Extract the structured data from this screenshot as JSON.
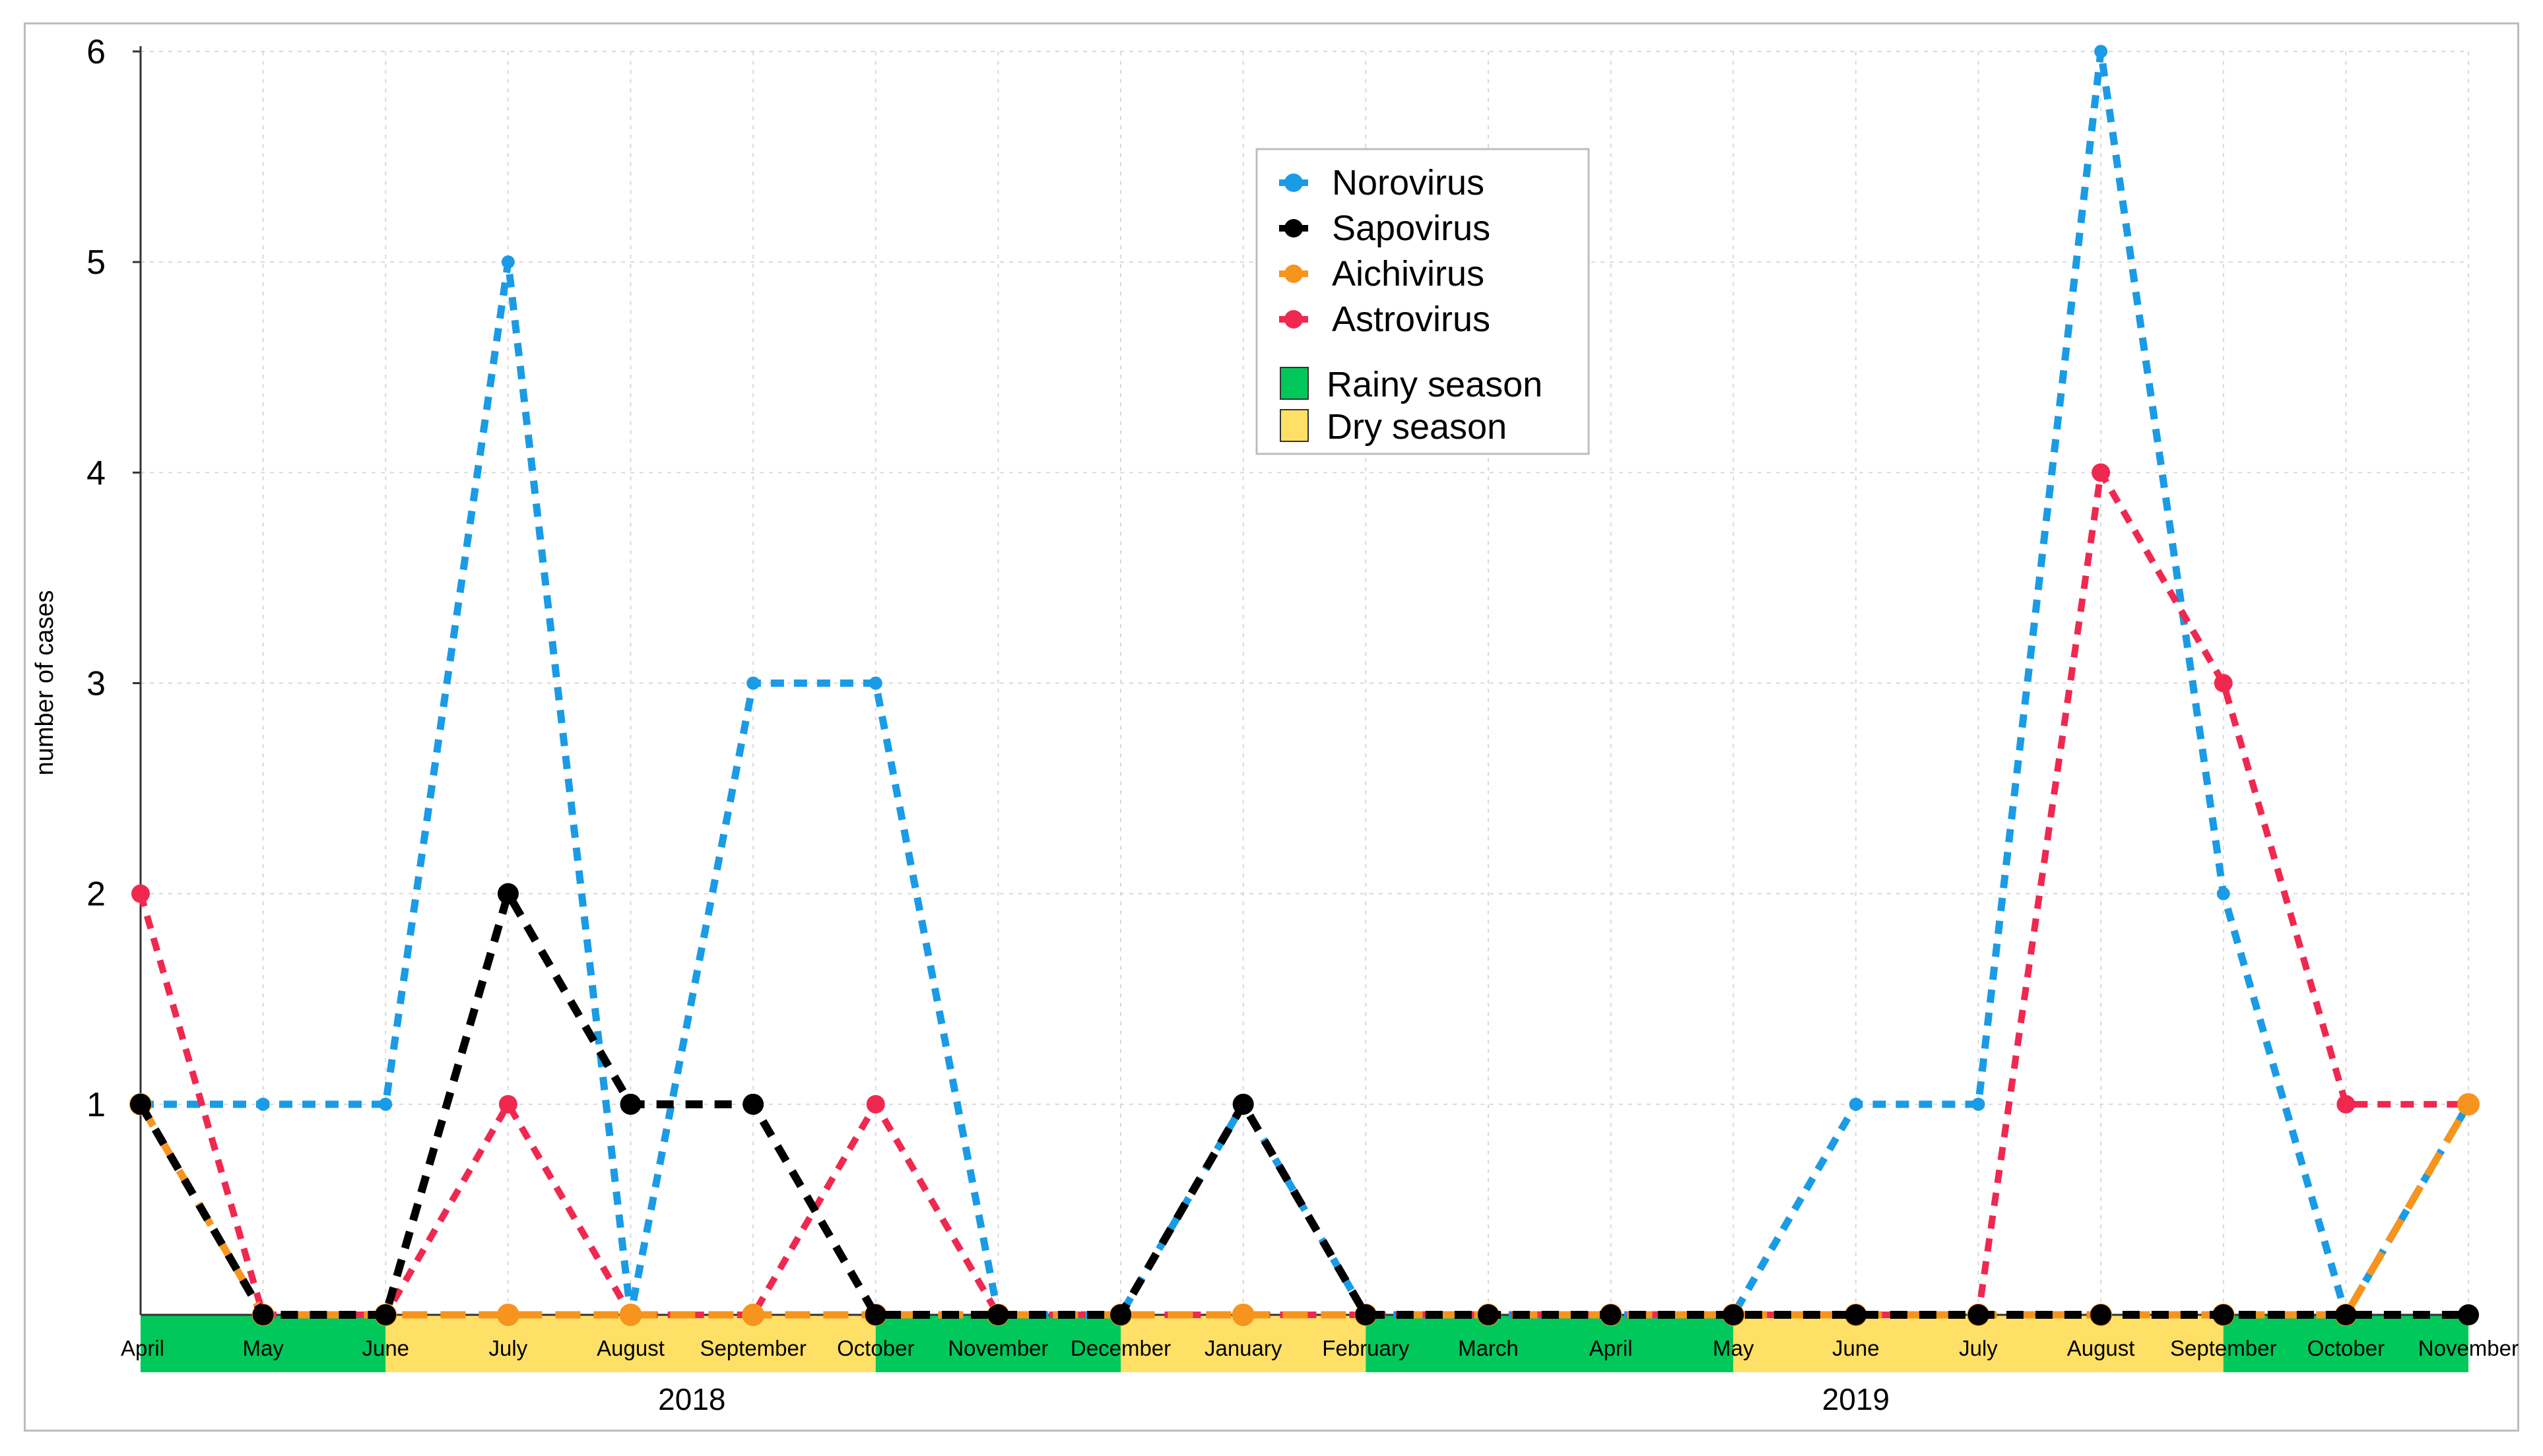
{
  "chart_data": {
    "type": "line",
    "title": "",
    "xlabel": "",
    "ylabel": "number of cases",
    "ylim": [
      0,
      6
    ],
    "yticks": [
      1,
      2,
      3,
      4,
      5,
      6
    ],
    "grid": true,
    "legend_position": "top-center",
    "categories": [
      "April",
      "May",
      "June",
      "July",
      "August",
      "September",
      "October",
      "November",
      "December",
      "January",
      "February",
      "March",
      "April",
      "May",
      "June",
      "July",
      "August",
      "September",
      "October",
      "November"
    ],
    "years": [
      {
        "label": "2018",
        "from": 0,
        "to": 9
      },
      {
        "label": "2019",
        "from": 9,
        "to": 19
      }
    ],
    "seasons": [
      {
        "name": "Rainy season",
        "from": 0,
        "to": 2
      },
      {
        "name": "Dry season",
        "from": 2,
        "to": 6
      },
      {
        "name": "Rainy season",
        "from": 6,
        "to": 8
      },
      {
        "name": "Dry season",
        "from": 8,
        "to": 10
      },
      {
        "name": "Rainy season",
        "from": 10,
        "to": 13
      },
      {
        "name": "Dry season",
        "from": 13,
        "to": 17
      },
      {
        "name": "Rainy season",
        "from": 17,
        "to": 19
      }
    ],
    "series": [
      {
        "name": "Norovirus",
        "color": "#1a9be6",
        "values": [
          1,
          1,
          1,
          5,
          0,
          3,
          3,
          0,
          0,
          1,
          0,
          0,
          0,
          0,
          1,
          1,
          6,
          2,
          0,
          1
        ]
      },
      {
        "name": "Astrovirus",
        "color": "#f02850",
        "values": [
          2,
          0,
          0,
          1,
          0,
          0,
          1,
          0,
          0,
          0,
          0,
          0,
          0,
          0,
          0,
          0,
          4,
          3,
          1,
          1
        ]
      },
      {
        "name": "Aichivirus",
        "color": "#f7941d",
        "values": [
          1,
          0,
          0,
          0,
          0,
          0,
          0,
          0,
          0,
          0,
          0,
          0,
          0,
          0,
          0,
          0,
          0,
          0,
          0,
          1
        ]
      },
      {
        "name": "Sapovirus",
        "color": "#000000",
        "values": [
          1,
          0,
          0,
          2,
          1,
          1,
          0,
          0,
          0,
          1,
          0,
          0,
          0,
          0,
          0,
          0,
          0,
          0,
          0,
          0
        ]
      }
    ],
    "legend": {
      "series_order": [
        "Norovirus",
        "Sapovirus",
        "Aichivirus",
        "Astrovirus"
      ],
      "patches": [
        {
          "label": "Rainy season",
          "color": "#00c85a"
        },
        {
          "label": "Dry season",
          "color": "#ffe066"
        }
      ]
    }
  }
}
